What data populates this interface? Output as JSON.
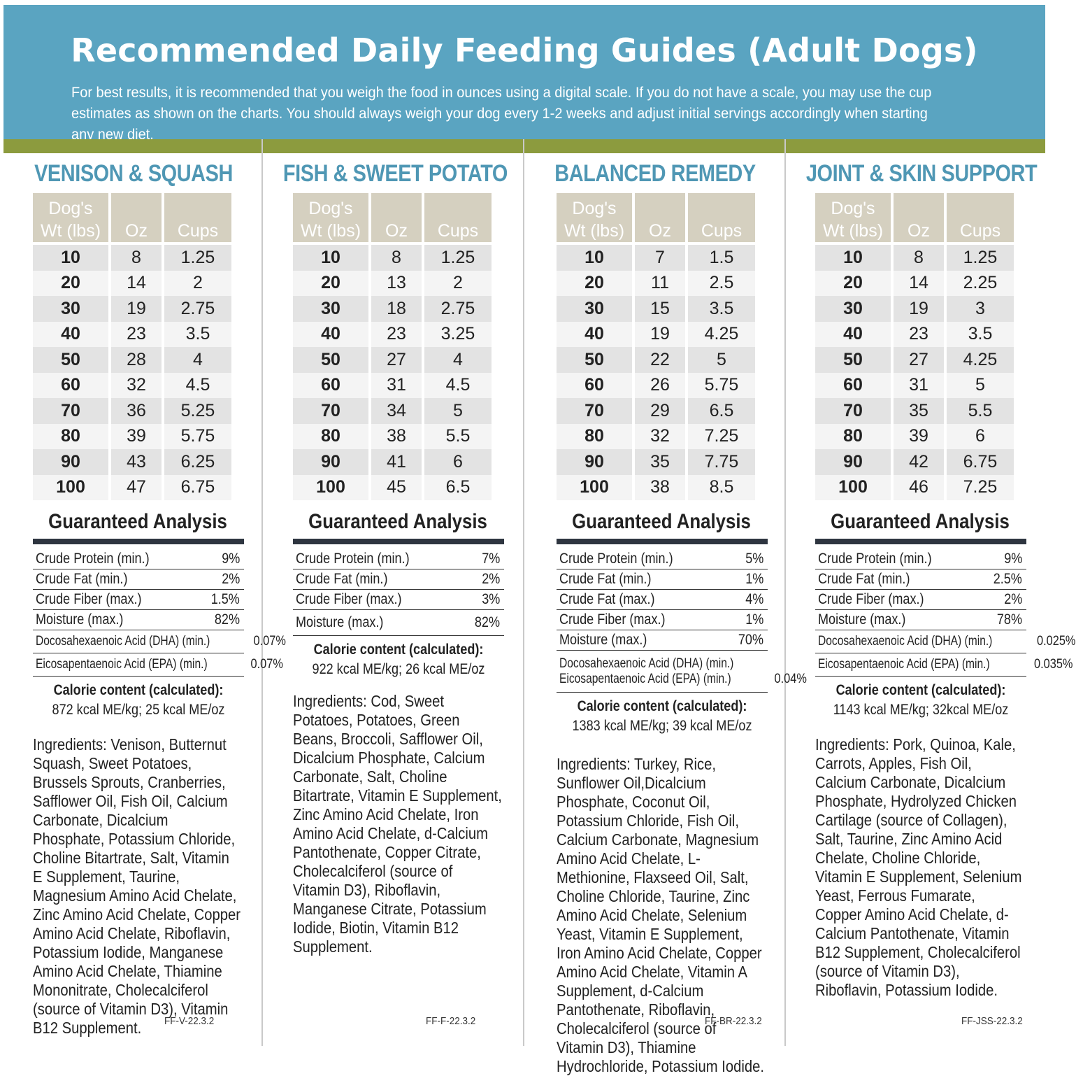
{
  "header": {
    "title": "Recommended Daily Feeding Guides (Adult Dogs)",
    "intro": "For best results, it is recommended that you weigh the food in ounces using a digital scale. If you do not have a scale, you may use the cup estimates as shown on the charts. You should always weigh your dog every 1-2 weeks and adjust initial servings accordingly when starting any new diet."
  },
  "table_headers": {
    "wt_line1": "Dog's",
    "wt_line2": "Wt (lbs)",
    "oz": "Oz",
    "cups": "Cups"
  },
  "ga_title": "Guaranteed Analysis",
  "cal_label": "Calorie content (calculated):",
  "columns": [
    {
      "title": "VENISON & SQUASH",
      "rows": [
        {
          "wt": "10",
          "oz": "8",
          "cups": "1.25"
        },
        {
          "wt": "20",
          "oz": "14",
          "cups": "2"
        },
        {
          "wt": "30",
          "oz": "19",
          "cups": "2.75"
        },
        {
          "wt": "40",
          "oz": "23",
          "cups": "3.5"
        },
        {
          "wt": "50",
          "oz": "28",
          "cups": "4"
        },
        {
          "wt": "60",
          "oz": "32",
          "cups": "4.5"
        },
        {
          "wt": "70",
          "oz": "36",
          "cups": "5.25"
        },
        {
          "wt": "80",
          "oz": "39",
          "cups": "5.75"
        },
        {
          "wt": "90",
          "oz": "43",
          "cups": "6.25"
        },
        {
          "wt": "100",
          "oz": "47",
          "cups": "6.75"
        }
      ],
      "analysis": [
        {
          "label": "Crude Protein (min.)",
          "value": "9%"
        },
        {
          "label": "Crude Fat (min.)",
          "value": "2%"
        },
        {
          "label": "Crude Fiber (max.)",
          "value": "1.5%"
        },
        {
          "label": "Moisture (max.)",
          "value": "82%"
        },
        {
          "label": "Docosahexaenoic Acid (DHA) (min.)",
          "value": "0.07%",
          "small": true
        },
        {
          "label": "Eicosapentaenoic Acid (EPA) (min.)",
          "value": "0.07%",
          "small": true
        }
      ],
      "calorie": "872 kcal ME/kg;  25 kcal ME/oz",
      "ingredients": "Ingredients: Venison, Butternut Squash, Sweet Potatoes, Brussels Sprouts, Cranberries, Safflower Oil, Fish Oil, Calcium Carbonate, Dicalcium Phosphate, Potassium Chloride, Choline Bitartrate, Salt, Vitamin E Supplement, Taurine, Magnesium Amino Acid Chelate, Zinc Amino Acid Chelate, Copper Amino Acid Chelate, Riboflavin, Potassium Iodide, Manganese Amino Acid Chelate, Thiamine Mononitrate, Cholecalciferol (source of Vitamin D3), Vitamin B12 Supplement.",
      "code": "FF-V-22.3.2"
    },
    {
      "title": "FISH & SWEET POTATO",
      "rows": [
        {
          "wt": "10",
          "oz": "8",
          "cups": "1.25"
        },
        {
          "wt": "20",
          "oz": "13",
          "cups": "2"
        },
        {
          "wt": "30",
          "oz": "18",
          "cups": "2.75"
        },
        {
          "wt": "40",
          "oz": "23",
          "cups": "3.25"
        },
        {
          "wt": "50",
          "oz": "27",
          "cups": "4"
        },
        {
          "wt": "60",
          "oz": "31",
          "cups": "4.5"
        },
        {
          "wt": "70",
          "oz": "34",
          "cups": "5"
        },
        {
          "wt": "80",
          "oz": "38",
          "cups": "5.5"
        },
        {
          "wt": "90",
          "oz": "41",
          "cups": "6"
        },
        {
          "wt": "100",
          "oz": "45",
          "cups": "6.5"
        }
      ],
      "analysis": [
        {
          "label": "Crude Protein (min.)",
          "value": "7%"
        },
        {
          "label": "Crude Fat (min.)",
          "value": "2%"
        },
        {
          "label": "Crude Fiber (max.)",
          "value": "3%"
        },
        {
          "label": "Moisture (max.)",
          "value": "82%",
          "tall": true
        }
      ],
      "calorie": "922 kcal ME/kg;  26 kcal ME/oz",
      "ingredients": "Ingredients: Cod, Sweet Potatoes, Potatoes, Green Beans, Broccoli, Safflower Oil, Dicalcium Phosphate, Calcium Carbonate, Salt, Choline Bitartrate, Vitamin E Supplement, Zinc Amino Acid Chelate, Iron Amino Acid Chelate, d-Calcium Pantothenate, Copper Citrate, Cholecalciferol (source of Vitamin D3), Riboflavin, Manganese Citrate, Potassium Iodide, Biotin, Vitamin B12 Supplement.",
      "code": "FF-F-22.3.2"
    },
    {
      "title": "BALANCED REMEDY",
      "rows": [
        {
          "wt": "10",
          "oz": "7",
          "cups": "1.5"
        },
        {
          "wt": "20",
          "oz": "11",
          "cups": "2.5"
        },
        {
          "wt": "30",
          "oz": "15",
          "cups": "3.5"
        },
        {
          "wt": "40",
          "oz": "19",
          "cups": "4.25"
        },
        {
          "wt": "50",
          "oz": "22",
          "cups": "5"
        },
        {
          "wt": "60",
          "oz": "26",
          "cups": "5.75"
        },
        {
          "wt": "70",
          "oz": "29",
          "cups": "6.5"
        },
        {
          "wt": "80",
          "oz": "32",
          "cups": "7.25"
        },
        {
          "wt": "90",
          "oz": "35",
          "cups": "7.75"
        },
        {
          "wt": "100",
          "oz": "38",
          "cups": "8.5"
        }
      ],
      "analysis": [
        {
          "label": "Crude Protein (min.)",
          "value": "5%"
        },
        {
          "label": "Crude Fat (min.)",
          "value": "1%"
        },
        {
          "label": "Crude Fat (max.)",
          "value": "4%"
        },
        {
          "label": "Crude Fiber (max.)",
          "value": "1%"
        },
        {
          "label": "Moisture (max.)",
          "value": "70%"
        },
        {
          "label": "Docosahexaenoic Acid (DHA) (min.)",
          "label2": "Eicosapentaenoic Acid (EPA) (min.)",
          "value": "0.04%",
          "double": true
        }
      ],
      "calorie": "1383 kcal ME/kg;  39 kcal ME/oz",
      "ingredients": "Ingredients: Turkey, Rice, Sunflower Oil,Dicalcium Phosphate, Coconut Oil, Potassium Chloride, Fish Oil, Calcium Carbonate, Magnesium Amino Acid Chelate, L-Methionine, Flaxseed Oil, Salt, Choline Chloride, Taurine, Zinc Amino Acid Chelate, Selenium Yeast, Vitamin E Supplement, Iron Amino Acid Chelate, Copper Amino Acid Chelate, Vitamin A Supplement, d-Calcium Pantothenate, Riboflavin, Cholecalciferol (source of Vitamin D3), Thiamine Hydrochloride, Potassium Iodide.",
      "code": "FF-BR-22.3.2"
    },
    {
      "title": "JOINT & SKIN SUPPORT",
      "rows": [
        {
          "wt": "10",
          "oz": "8",
          "cups": "1.25"
        },
        {
          "wt": "20",
          "oz": "14",
          "cups": "2.25"
        },
        {
          "wt": "30",
          "oz": "19",
          "cups": "3"
        },
        {
          "wt": "40",
          "oz": "23",
          "cups": "3.5"
        },
        {
          "wt": "50",
          "oz": "27",
          "cups": "4.25"
        },
        {
          "wt": "60",
          "oz": "31",
          "cups": "5"
        },
        {
          "wt": "70",
          "oz": "35",
          "cups": "5.5"
        },
        {
          "wt": "80",
          "oz": "39",
          "cups": "6"
        },
        {
          "wt": "90",
          "oz": "42",
          "cups": "6.75"
        },
        {
          "wt": "100",
          "oz": "46",
          "cups": "7.25"
        }
      ],
      "analysis": [
        {
          "label": "Crude Protein (min.)",
          "value": "9%"
        },
        {
          "label": "Crude Fat (min.)",
          "value": "2.5%"
        },
        {
          "label": "Crude Fiber (max.)",
          "value": "2%"
        },
        {
          "label": "Moisture (max.)",
          "value": "78%"
        },
        {
          "label": "Docosahexaenoic Acid (DHA) (min.)",
          "value": "0.025%",
          "small": true
        },
        {
          "label": "Eicosapentaenoic Acid (EPA) (min.)",
          "value": "0.035%",
          "small": true
        }
      ],
      "calorie": "1143 kcal ME/kg;  32kcal ME/oz",
      "ingredients": "Ingredients: Pork, Quinoa, Kale, Carrots, Apples, Fish Oil, Calcium Carbonate, Dicalcium Phosphate, Hydrolyzed Chicken Cartilage (source of Collagen), Salt, Taurine, Zinc Amino Acid Chelate, Choline Chloride, Vitamin E Supplement, Selenium Yeast, Ferrous Fumarate, Copper Amino Acid Chelate, d-Calcium Pantothenate, Vitamin B12 Supplement, Cholecalciferol (source of Vitamin D3), Riboflavin, Potassium Iodide.",
      "code": "FF-JSS-22.3.2"
    }
  ]
}
